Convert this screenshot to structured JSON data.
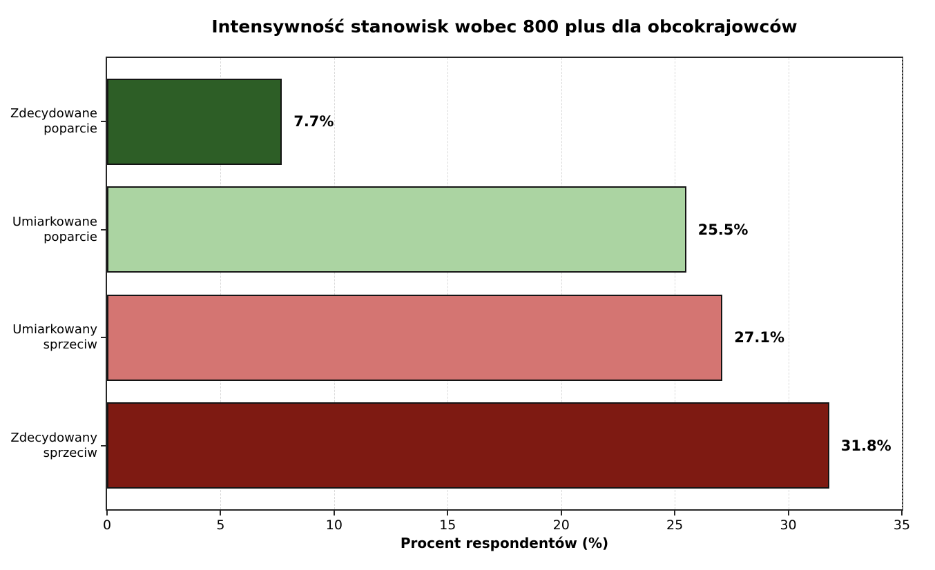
{
  "chart_data": {
    "type": "bar",
    "orientation": "horizontal",
    "title": "Intensywność stanowisk wobec 800 plus dla obcokrajowców",
    "xlabel": "Procent respondentów (%)",
    "ylabel": "",
    "categories": [
      "Zdecydowane poparcie",
      "Umiarkowane poparcie",
      "Umiarkowany sprzeciw",
      "Zdecydowany sprzeciw"
    ],
    "category_lines": [
      [
        "Zdecydowane",
        "poparcie"
      ],
      [
        "Umiarkowane",
        "poparcie"
      ],
      [
        "Umiarkowany",
        "sprzeciw"
      ],
      [
        "Zdecydowany",
        "sprzeciw"
      ]
    ],
    "values": [
      7.7,
      25.5,
      27.1,
      31.8
    ],
    "value_labels": [
      "7.7%",
      "25.5%",
      "27.1%",
      "31.8%"
    ],
    "bar_colors": [
      "#2d5e26",
      "#abd4a2",
      "#d47572",
      "#7e1a12"
    ],
    "bar_edge_color": "#141414",
    "xlim": [
      0,
      35
    ],
    "xticks": [
      0,
      5,
      10,
      15,
      20,
      25,
      30,
      35
    ],
    "grid": "vertical-dashed",
    "grid_color": "#d9d9d9",
    "legend": "none",
    "background_color": "#ffffff"
  }
}
